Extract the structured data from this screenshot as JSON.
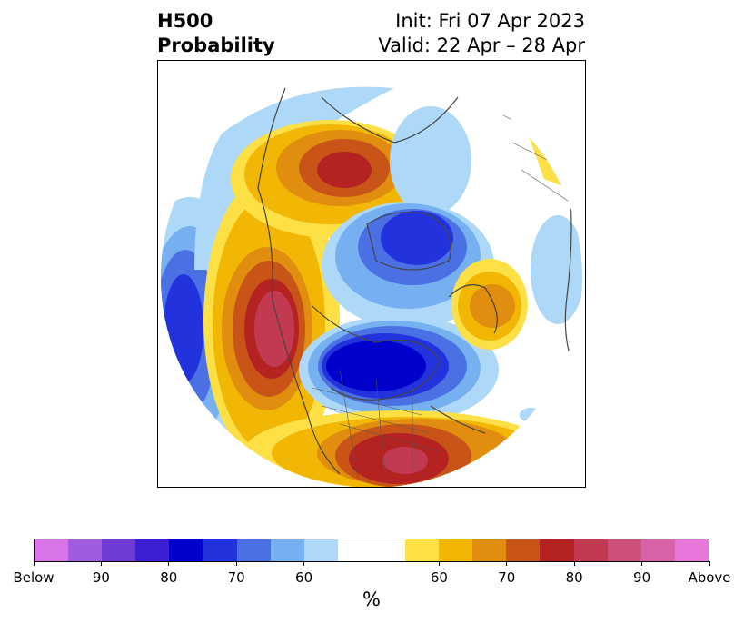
{
  "title": {
    "left_line1": "H500",
    "left_line2": "Probability",
    "right_line1": "Init: Fri 07 Apr 2023",
    "right_line2": "Valid: 22 Apr – 28 Apr"
  },
  "colorbar": {
    "label": "%",
    "ticks": [
      "Below",
      "90",
      "80",
      "70",
      "60",
      "60",
      "70",
      "80",
      "90",
      "Above"
    ],
    "below_colors": [
      "#d674e8",
      "#a05ce0",
      "#6f3dd6",
      "#3c1fd2",
      "#0000cc",
      "#2233dd",
      "#4a70e4",
      "#76b0f0",
      "#aed8f7"
    ],
    "neutral_color": "#ffffff",
    "above_colors": [
      "#fde046",
      "#f2b705",
      "#e08d10",
      "#c85418",
      "#b52222",
      "#c23a52",
      "#cc507a",
      "#d862a8",
      "#e877dc"
    ]
  },
  "map": {
    "projection": "north-polar-stereographic",
    "anomalies": [
      {
        "region": "Gulf of Alaska / NE Pacific",
        "sign": "above",
        "max": "80"
      },
      {
        "region": "Hudson Bay / Central Canada",
        "sign": "below",
        "max": "80"
      },
      {
        "region": "Southeastern United States",
        "sign": "above",
        "max": "80"
      },
      {
        "region": "Eastern Siberia",
        "sign": "above",
        "max": "80"
      },
      {
        "region": "Arctic Ocean / Barents Sea",
        "sign": "below",
        "max": "80"
      },
      {
        "region": "Western North Pacific",
        "sign": "below",
        "max": "80"
      },
      {
        "region": "Scandinavia / NW Europe",
        "sign": "above",
        "max": "70"
      }
    ]
  }
}
